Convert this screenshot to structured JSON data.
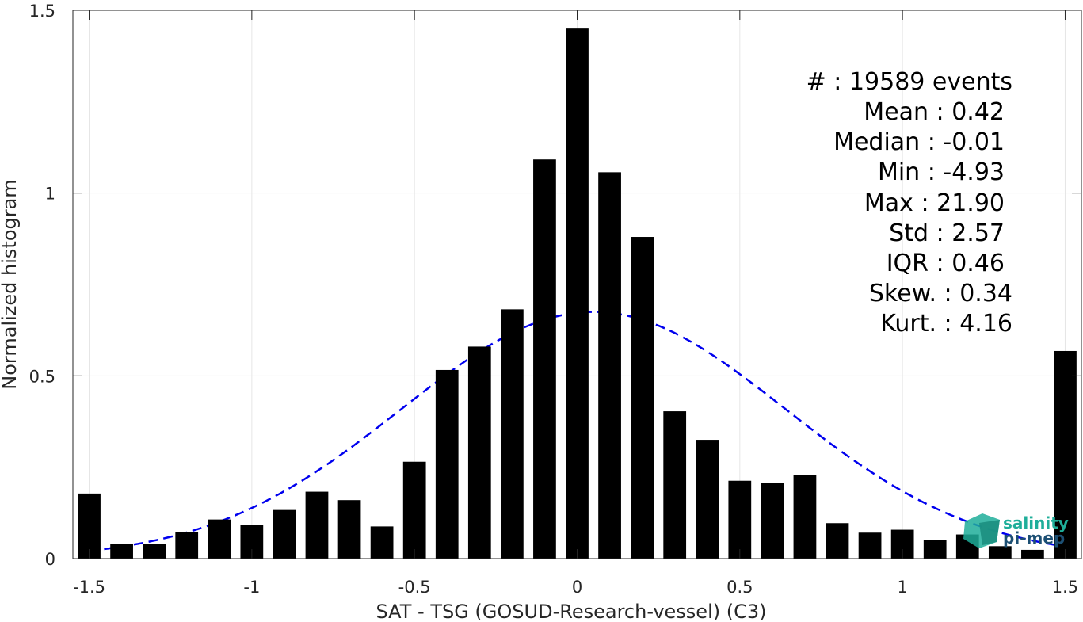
{
  "chart_data": {
    "type": "bar",
    "xlabel": "SAT - TSG (GOSUD-Research-vessel) (C3)",
    "ylabel": "Normalized histogram",
    "xlim": [
      -1.55,
      1.55
    ],
    "ylim": [
      0,
      1.5
    ],
    "grid": true,
    "bar_width": 0.07,
    "xticks": [
      -1.5,
      -1,
      -0.5,
      0,
      0.5,
      1,
      1.5
    ],
    "xtick_labels": [
      "-1.5",
      "-1",
      "-0.5",
      "0",
      "0.5",
      "1",
      "1.5"
    ],
    "yticks": [
      0,
      0.5,
      1,
      1.5
    ],
    "ytick_labels": [
      "0",
      "0.5",
      "1",
      "1.5"
    ],
    "series": [
      {
        "x": [
          -1.5,
          -1.4,
          -1.3,
          -1.2,
          -1.1,
          -1.0,
          -0.9,
          -0.8,
          -0.7,
          -0.6,
          -0.5,
          -0.4,
          -0.3,
          -0.2,
          -0.1,
          0.0,
          0.1,
          0.2,
          0.3,
          0.4,
          0.5,
          0.6,
          0.7,
          0.8,
          0.9,
          1.0,
          1.1,
          1.2,
          1.3,
          1.4,
          1.5
        ],
        "values": [
          0.178,
          0.04,
          0.04,
          0.072,
          0.107,
          0.092,
          0.133,
          0.183,
          0.16,
          0.088,
          0.265,
          0.516,
          0.58,
          0.682,
          1.092,
          1.452,
          1.057,
          0.88,
          0.403,
          0.325,
          0.213,
          0.208,
          0.228,
          0.097,
          0.071,
          0.079,
          0.05,
          0.066,
          0.034,
          0.024,
          0.568
        ],
        "color": "#000000"
      }
    ],
    "fit_curve": {
      "style": "dashed",
      "color": "#0000ee",
      "mean": 0.05,
      "std": 0.59,
      "peak": 0.675,
      "x_range": [
        -1.5,
        1.5
      ]
    }
  },
  "stats": {
    "lines": [
      "#  : 19589 events",
      "Mean : 0.42",
      "Median : -0.01",
      "Min : -4.93",
      "Max : 21.90",
      "Std : 2.57",
      "IQR : 0.46",
      "Skew. : 0.34",
      "Kurt. : 4.16"
    ]
  },
  "logo": {
    "line1": "salinity",
    "line2": "pi-mep",
    "color_primary": "#1fae9a",
    "color_secondary": "#1c4f73"
  }
}
